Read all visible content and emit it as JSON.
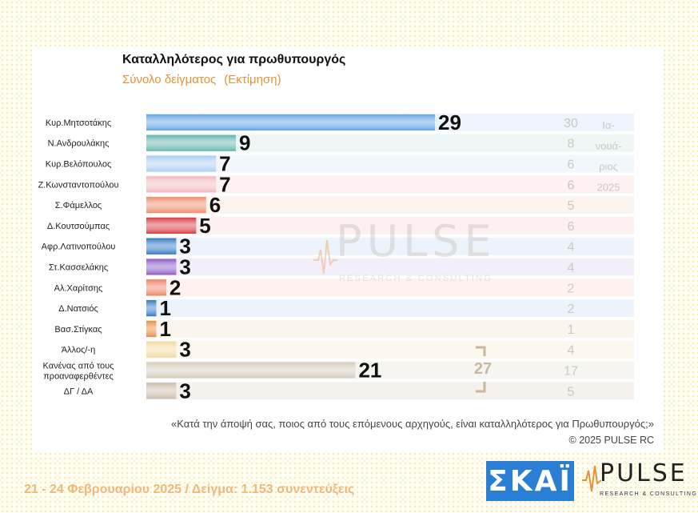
{
  "footer": {
    "text": "21 - 24 Φεβρουαρίου 2025  /  Δείγμα:  1.153 συνεντεύξεις"
  },
  "logos": {
    "skai": "ΣΚΑΪ",
    "pulse": "PULSE",
    "pulse_tagline": "RESEARCH & CONSULTING"
  },
  "chart_data": {
    "type": "bar",
    "title": "Καταλληλότερος για πρωθυπουργός",
    "subtitle": "Σύνολο δείγματος",
    "subtitle_note": "(Εκτίμηση)",
    "categories": [
      "Κυρ.Μητσοτάκης",
      "Ν.Ανδρουλάκης",
      "Κυρ.Βελόπουλος",
      "Ζ.Κωνσταντοπούλου",
      "Σ.Φάμελλος",
      "Δ.Κουτσούμπας",
      "Αφρ.Λατινοπούλου",
      "Στ.Κασσελάκης",
      "Αλ.Χαρίτσης",
      "Δ.Νατσιός",
      "Βασ.Στίγκας",
      "Άλλος/-η",
      "Κανένας από τους προαναφερθέντες",
      "ΔΓ / ΔΑ"
    ],
    "series": [
      {
        "values": [
          29,
          9,
          7,
          7,
          6,
          5,
          3,
          3,
          2,
          1,
          1,
          3,
          21,
          3
        ]
      },
      {
        "name": "Ια-νουά-ριος 2025",
        "values": [
          30,
          8,
          6,
          6,
          5,
          6,
          4,
          4,
          2,
          2,
          1,
          4,
          17,
          5
        ]
      }
    ],
    "previous_label_lines": [
      "Ια-",
      "νουά-",
      "ριος",
      "2025"
    ],
    "bracket_total": 27,
    "colors": [
      "#5fa3e6",
      "#5fb4ac",
      "#a9cdf3",
      "#f3b8bd",
      "#f08a6a",
      "#d9393f",
      "#2f77c4",
      "#8a56c4",
      "#ef7e63",
      "#2f77c4",
      "#eb8a3a",
      "#f2d9a0",
      "#d4cbbb",
      "#c9bcaa"
    ],
    "row_bg": [
      "#eef4fb",
      "#eef7f6",
      "#f2f7fd",
      "#fdf1f2",
      "#fdf3ef",
      "#fcf0f0",
      "#edf3fa",
      "#f3effa",
      "#fdf2ef",
      "#edf3fa",
      "#fcf5ee",
      "#fcf8ee",
      "#f7f5f1",
      "#f5f2ee"
    ],
    "xlim": [
      0,
      30
    ]
  },
  "watermark": {
    "name": "PULSE",
    "tagline": "RESEARCH & CONSULTING"
  },
  "question": "«Κατά την άποψή σας, ποιος από τους επόμενους αρχηγούς, είναι καταλληλότερος για Πρωθυπουργός;»",
  "copyright": "©  2025  PULSE RC"
}
